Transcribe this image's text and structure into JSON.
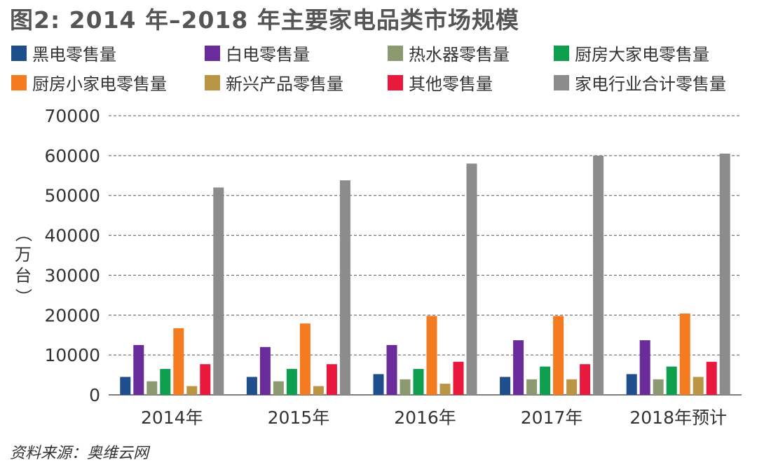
{
  "title": "图2: 2014 年–2018 年主要家电品类市场规模",
  "source": "资料来源：奥维云网",
  "chart_data": {
    "type": "bar",
    "categories": [
      "2014年",
      "2015年",
      "2016年",
      "2017年",
      "2018年预计"
    ],
    "ylabel": "（万台）",
    "ylim": [
      0,
      70000
    ],
    "yticks": [
      "0",
      "10000",
      "20000",
      "30000",
      "40000",
      "50000",
      "60000",
      "70000"
    ],
    "grid": true,
    "legend_position": "top",
    "series": [
      {
        "name": "黑电零售量",
        "color": "#1f4e8c",
        "values": [
          4500,
          4500,
          5200,
          4500,
          5200
        ]
      },
      {
        "name": "白电零售量",
        "color": "#6a2c9a",
        "values": [
          12500,
          12000,
          12500,
          13700,
          13700
        ]
      },
      {
        "name": "热水器零售量",
        "color": "#8c9a72",
        "values": [
          3400,
          3400,
          3900,
          3900,
          3900
        ]
      },
      {
        "name": "厨房大家电零售量",
        "color": "#0fa04f",
        "values": [
          6500,
          6500,
          6500,
          7100,
          7100
        ]
      },
      {
        "name": "厨房小家电零售量",
        "color": "#f47b20",
        "values": [
          16700,
          17900,
          19800,
          19800,
          20400
        ]
      },
      {
        "name": "新兴产品零售量",
        "color": "#b99545",
        "values": [
          2200,
          2200,
          2800,
          3900,
          4500
        ]
      },
      {
        "name": "其他零售量",
        "color": "#e8193c",
        "values": [
          7700,
          7700,
          8300,
          7700,
          8300
        ]
      },
      {
        "name": "家电行业合计零售量",
        "color": "#8c8c8c",
        "values": [
          52000,
          53800,
          58000,
          60000,
          60500
        ]
      }
    ]
  }
}
